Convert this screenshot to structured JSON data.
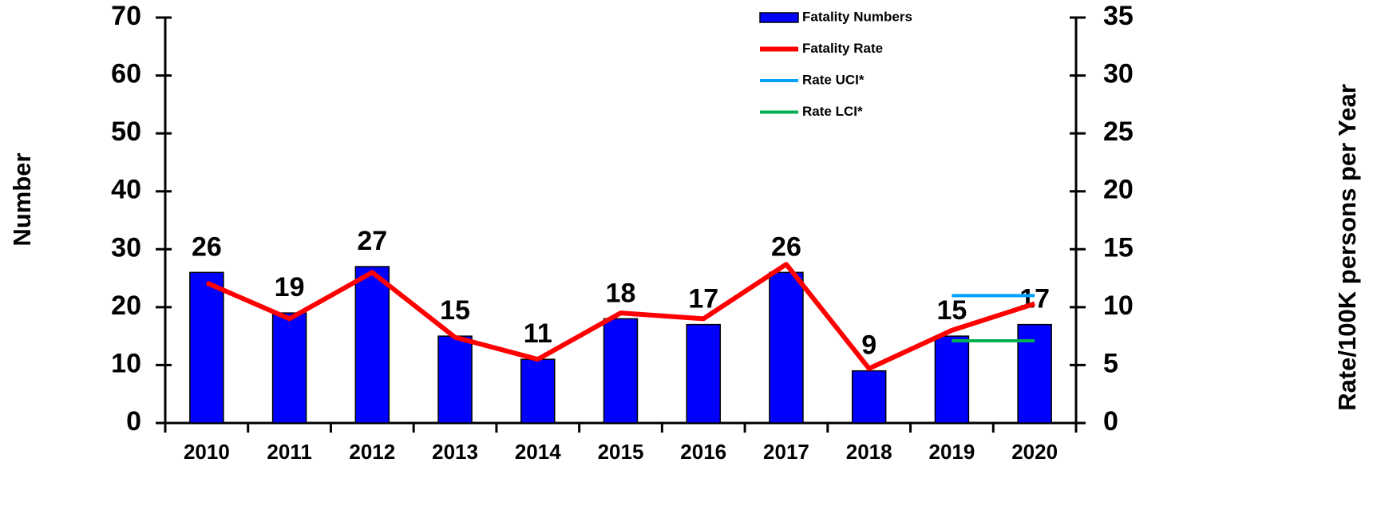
{
  "chart_data": {
    "type": "bar",
    "categories": [
      "2010",
      "2011",
      "2012",
      "2013",
      "2014",
      "2015",
      "2016",
      "2017",
      "2018",
      "2019",
      "2020"
    ],
    "series": [
      {
        "name": "Fatality Numbers",
        "type": "bar",
        "color": "#0000ff",
        "values": [
          26,
          19,
          27,
          15,
          11,
          18,
          17,
          26,
          9,
          15,
          17
        ]
      },
      {
        "name": "Fatality Rate",
        "type": "line",
        "axis": "y2",
        "color": "#ff0000",
        "values": [
          12.1,
          9.0,
          13.0,
          7.4,
          5.5,
          9.5,
          9.0,
          13.7,
          4.7,
          8.0,
          10.3
        ]
      },
      {
        "name": "Rate UCI*",
        "type": "line",
        "axis": "y2",
        "color": "#00a2ff",
        "values": [
          null,
          null,
          null,
          null,
          null,
          null,
          null,
          null,
          null,
          11.0,
          11.0
        ]
      },
      {
        "name": "Rate LCI*",
        "type": "line",
        "axis": "y2",
        "color": "#00b050",
        "values": [
          null,
          null,
          null,
          null,
          null,
          null,
          null,
          null,
          null,
          7.1,
          7.1
        ]
      }
    ],
    "ylabel": "Number",
    "y2label": "Rate/100K persons per Year",
    "ylim": [
      0,
      70
    ],
    "yticks": [
      0,
      10,
      20,
      30,
      40,
      50,
      60,
      70
    ],
    "y2lim": [
      0,
      35
    ],
    "y2ticks": [
      0,
      5,
      10,
      15,
      20,
      25,
      30,
      35
    ],
    "legend": "top-right"
  }
}
